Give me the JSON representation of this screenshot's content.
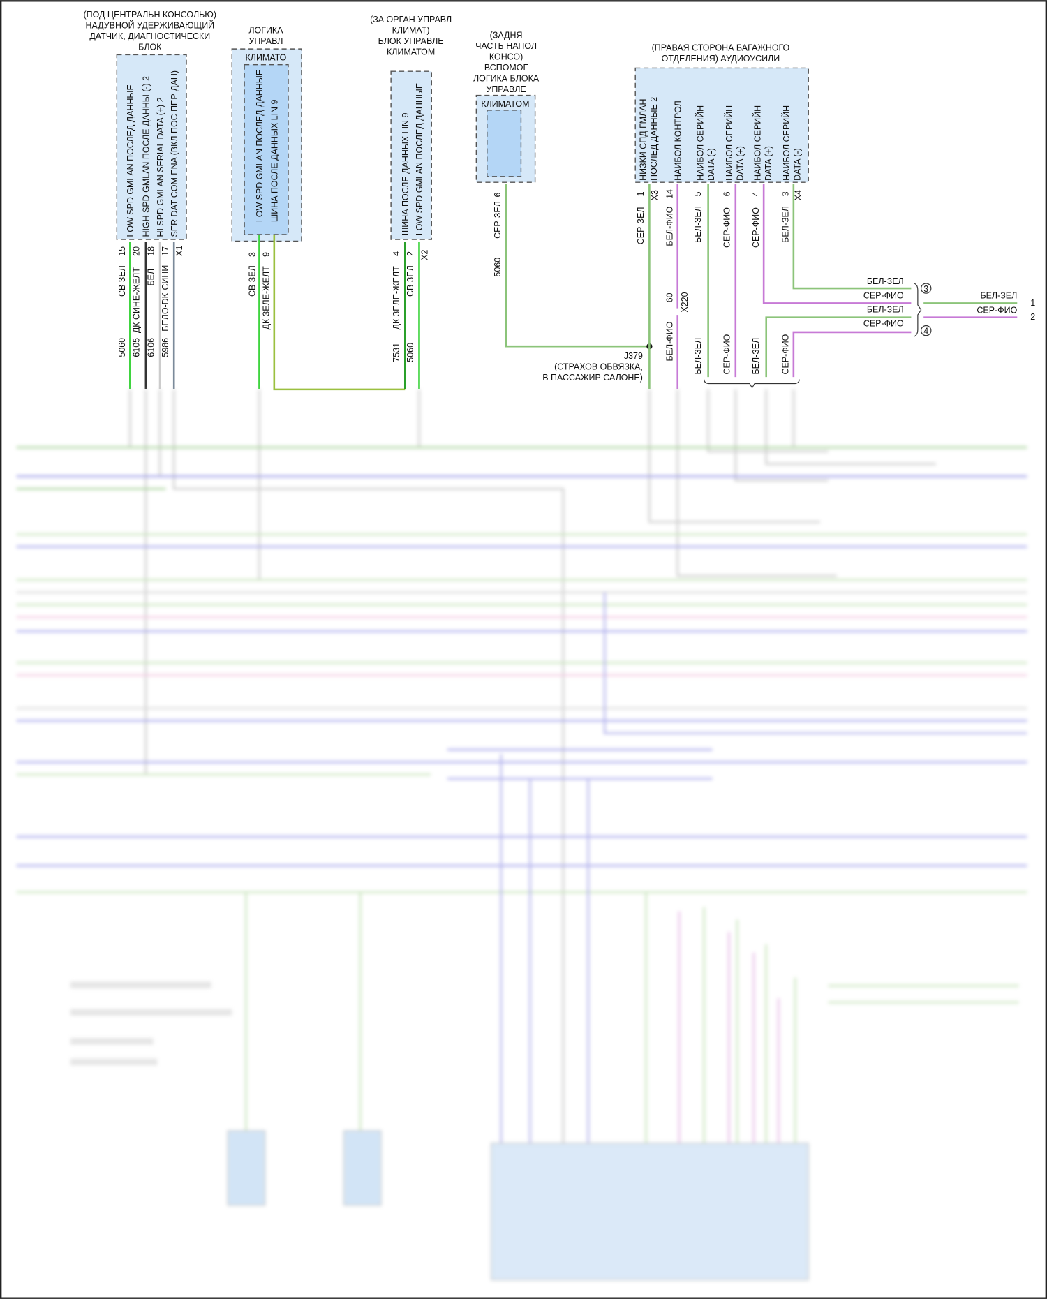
{
  "colors": {
    "green": "#8cc47a",
    "bright_green": "#3fd43f",
    "magenta": "#c77ad6",
    "blue": "#7c7ce0",
    "yellow_green": "#c8d860",
    "module_fill": "#d6e8f8",
    "module_inner_fill": "#b4d6f6"
  },
  "module1": {
    "title": [
      "(ПОД ЦЕНТРАЛЬН КОНСОЛЬЮ)",
      "НАДУВНОЙ УДЕРЖИВАЮЩИЙ",
      "ДАТЧИК, ДИАГНОСТИЧЕСКИ",
      "БЛОК"
    ],
    "pins": [
      {
        "function": "LOW SPD GMLAN ПОСЛЕД ДАННЫЕ",
        "pin": "15",
        "color": "СВ ЗЕЛ",
        "circuit": "5060"
      },
      {
        "function": "HIGH SPD GMLAN ПОСЛЕ ДАННЫ (-) 2",
        "pin": "20",
        "color": "ДК СИНЕ-ЖЕЛТ",
        "circuit": "6105"
      },
      {
        "function": "HI SPD GMLAN SERIAL DATA (+) 2",
        "pin": "18",
        "color": "БЕЛ",
        "circuit": "6106"
      },
      {
        "function": "SER DAT COM ENA (ВКЛ ПОС ПЕР ДАН)",
        "pin": "17",
        "color": "БЕЛО-DK СИНИ",
        "circuit": "5986"
      }
    ],
    "connector": "X1"
  },
  "module2": {
    "title": [
      "ЛОГИКА",
      "УПРАВЛ"
    ],
    "inner_label": "КЛИМАТО",
    "pins": [
      {
        "function": "LOW SPD GMLAN ПОСЛЕД ДАННЫЕ",
        "pin": "3",
        "color": "СВ ЗЕЛ"
      },
      {
        "function": "ШИНА ПОСЛЕ ДАННЫХ LIN 9",
        "pin": "9",
        "color": "ДК ЗЕЛЕ-ЖЕЛТ"
      }
    ]
  },
  "module3": {
    "title": [
      "(ЗА ОРГАН УПРАВЛ",
      "КЛИМАТ)",
      "БЛОК УПРАВЛЕ",
      "КЛИМАТОМ"
    ],
    "pins": [
      {
        "function": "ШИНА ПОСЛЕ ДАННЫХ LIN 9",
        "pin": "4",
        "color": "ДК ЗЕЛЕ-ЖЕЛТ",
        "circuit": "7531"
      },
      {
        "function": "LOW SPD GMLAN ПОСЛЕД ДАННЫЕ",
        "pin": "2",
        "color": "СВ ЗЕЛ",
        "circuit": "5060"
      }
    ],
    "connector": "X2"
  },
  "module4": {
    "title": [
      "(ЗАДНЯ",
      "ЧАСТЬ НАПОЛ",
      "КОНСО)",
      "ВСПОМОГ",
      "ЛОГИКА БЛОКА",
      "УПРАВЛЕ"
    ],
    "inner_label": "КЛИМАТОМ",
    "pin": "6",
    "color": "СЕР-ЗЕЛ",
    "circuit": "5060"
  },
  "splice": {
    "id": "J379",
    "location": [
      "(СТРАХОВ ОБВЯЗКА,",
      "В ПАССАЖИР САЛОНЕ)"
    ]
  },
  "module5": {
    "title": [
      "(ПРАВАЯ СТОРОНА БАГАЖНОГО",
      "ОТДЕЛЕНИЯ) АУДИОУСИЛИ"
    ],
    "functions": [
      [
        "НИЗКИ СПД ГМЛАН",
        "ПОСЛЕД ДАННЫЕ 2"
      ],
      [
        "НАИБОЛ КОНТРОЛ"
      ],
      [
        "НАИБОЛ СЕРИЙН",
        "DATA (-)"
      ],
      [
        "НАИБОЛ СЕРИЙН",
        "DATA (+)"
      ],
      [
        "НАИБОЛ СЕРИЙН",
        "DATA (+)"
      ],
      [
        "НАИБОЛ СЕРИЙН",
        "DATA (-)"
      ]
    ],
    "pins": [
      "1",
      "14",
      "5",
      "6",
      "4",
      "3"
    ],
    "connectors": [
      "X3",
      "X4"
    ],
    "colors": [
      "СЕР-ЗЕЛ",
      "БЕЛ-ФИО",
      "БЕЛ-ЗЕЛ",
      "СЕР-ФИО",
      "СЕР-ФИО",
      "БЕЛ-ЗЕЛ"
    ],
    "inline": {
      "pin": "60",
      "connector": "X220"
    },
    "lower_colors": [
      "БЕЛ-ФИО",
      "БЕЛ-ЗЕЛ",
      "СЕР-ФИО",
      "БЕЛ-ЗЕЛ",
      "СЕР-ФИО"
    ]
  },
  "bundle": {
    "left_labels": [
      "БЕЛ-ЗЕЛ",
      "СЕР-ФИО",
      "БЕЛ-ЗЕЛ",
      "СЕР-ФИО"
    ],
    "markers": [
      "3",
      "4"
    ],
    "right_labels": [
      "БЕЛ-ЗЕЛ",
      "СЕР-ФИО"
    ],
    "right_pins": [
      "1",
      "2"
    ]
  }
}
